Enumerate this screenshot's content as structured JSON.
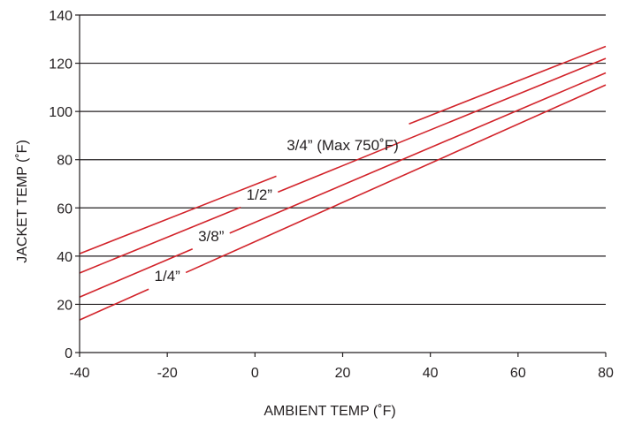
{
  "chart_data": {
    "type": "line",
    "title": "",
    "xlabel": "AMBIENT TEMP (˚F)",
    "ylabel": "JACKET TEMP (˚F)",
    "xlim": [
      -40,
      80
    ],
    "ylim": [
      0,
      140
    ],
    "xticks": [
      -40,
      -20,
      0,
      20,
      40,
      60,
      80
    ],
    "yticks": [
      0,
      20,
      40,
      60,
      80,
      100,
      120,
      140
    ],
    "grid": "horizontal",
    "line_color": "#d2232a",
    "series": [
      {
        "name": "3/4” (Max 750˚F)",
        "x": [
          -40,
          80
        ],
        "y": [
          41,
          127
        ]
      },
      {
        "name": "1/2”",
        "x": [
          -40,
          80
        ],
        "y": [
          33,
          122
        ]
      },
      {
        "name": "3/8”",
        "x": [
          -40,
          80
        ],
        "y": [
          23,
          116
        ]
      },
      {
        "name": "1/4”",
        "x": [
          -40,
          80
        ],
        "y": [
          13.5,
          111
        ]
      }
    ]
  }
}
